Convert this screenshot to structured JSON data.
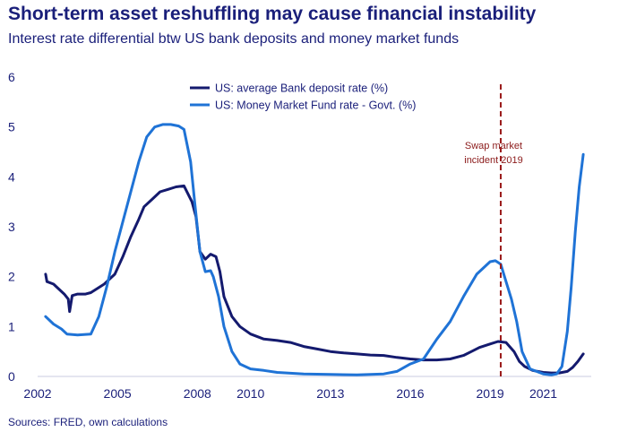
{
  "title": "Short-term asset reshuffling may cause financial instability",
  "subtitle": "Interest rate differential btw US bank deposits and money market funds",
  "source": "Sources: FRED, own calculations",
  "colors": {
    "deposit": "#141a6e",
    "mmf": "#1f73d6",
    "annotation": "#9b1b1b",
    "text": "#1a1f7a"
  },
  "chart_data": {
    "type": "line",
    "xlabel": "",
    "ylabel": "",
    "ylim": [
      0,
      6
    ],
    "xlim": [
      2002,
      2022.8
    ],
    "y_ticks": [
      "0",
      "1",
      "2",
      "3",
      "4",
      "5",
      "6"
    ],
    "x_ticks": [
      {
        "label": "2002",
        "value": 2002
      },
      {
        "label": "2005",
        "value": 2005
      },
      {
        "label": "2008",
        "value": 2008
      },
      {
        "label": "2010",
        "value": 2010
      },
      {
        "label": "2013",
        "value": 2013
      },
      {
        "label": "2016",
        "value": 2016
      },
      {
        "label": "2019",
        "value": 2019
      },
      {
        "label": "2021",
        "value": 2021
      }
    ],
    "grid": false,
    "legend": "top-center",
    "annotation": {
      "x": 2019.4,
      "lines": [
        "Swap market",
        "incident 2019"
      ]
    },
    "series": [
      {
        "name": "US: average Bank deposit rate (%)",
        "x": [
          2002.3,
          2002.35,
          2002.6,
          2002.8,
          2003.0,
          2003.15,
          2003.2,
          2003.3,
          2003.5,
          2003.8,
          2004.0,
          2004.5,
          2004.9,
          2005.2,
          2005.5,
          2005.8,
          2006.0,
          2006.3,
          2006.6,
          2006.9,
          2007.2,
          2007.5,
          2007.8,
          2007.95,
          2008.1,
          2008.3,
          2008.5,
          2008.7,
          2008.85,
          2009.0,
          2009.3,
          2009.6,
          2010.0,
          2010.5,
          2011.0,
          2011.5,
          2012.0,
          2012.5,
          2013.0,
          2013.5,
          2014.0,
          2014.5,
          2015.0,
          2015.5,
          2016.0,
          2016.5,
          2017.0,
          2017.5,
          2018.0,
          2018.3,
          2018.6,
          2019.0,
          2019.3,
          2019.6,
          2019.9,
          2020.1,
          2020.3,
          2020.6,
          2021.0,
          2021.3,
          2021.6,
          2021.9,
          2022.1,
          2022.3,
          2022.5
        ],
        "values": [
          2.05,
          1.9,
          1.85,
          1.75,
          1.65,
          1.55,
          1.3,
          1.62,
          1.65,
          1.65,
          1.68,
          1.85,
          2.05,
          2.4,
          2.8,
          3.15,
          3.4,
          3.55,
          3.7,
          3.75,
          3.8,
          3.82,
          3.5,
          3.2,
          2.5,
          2.35,
          2.45,
          2.4,
          2.1,
          1.6,
          1.2,
          1.0,
          0.85,
          0.75,
          0.72,
          0.68,
          0.6,
          0.55,
          0.5,
          0.47,
          0.45,
          0.43,
          0.42,
          0.38,
          0.35,
          0.33,
          0.33,
          0.35,
          0.42,
          0.5,
          0.58,
          0.65,
          0.7,
          0.68,
          0.5,
          0.3,
          0.2,
          0.12,
          0.08,
          0.07,
          0.07,
          0.1,
          0.18,
          0.3,
          0.45
        ]
      },
      {
        "name": "US: Money Market Fund rate - Govt. (%)",
        "x": [
          2002.3,
          2002.6,
          2002.9,
          2003.1,
          2003.5,
          2004.0,
          2004.3,
          2004.6,
          2004.9,
          2005.2,
          2005.5,
          2005.8,
          2006.1,
          2006.4,
          2006.7,
          2007.0,
          2007.3,
          2007.5,
          2007.75,
          2007.9,
          2008.1,
          2008.3,
          2008.5,
          2008.6,
          2008.8,
          2009.0,
          2009.3,
          2009.6,
          2010.0,
          2010.5,
          2011.0,
          2012.0,
          2013.0,
          2014.0,
          2015.0,
          2015.5,
          2016.0,
          2016.5,
          2017.0,
          2017.5,
          2018.0,
          2018.5,
          2019.0,
          2019.2,
          2019.4,
          2019.6,
          2019.8,
          2020.0,
          2020.2,
          2020.5,
          2021.0,
          2021.3,
          2021.5,
          2021.7,
          2021.9,
          2022.05,
          2022.2,
          2022.35,
          2022.5
        ],
        "values": [
          1.2,
          1.05,
          0.95,
          0.85,
          0.83,
          0.85,
          1.2,
          1.8,
          2.5,
          3.1,
          3.7,
          4.3,
          4.8,
          5.0,
          5.05,
          5.05,
          5.02,
          4.95,
          4.3,
          3.5,
          2.5,
          2.1,
          2.12,
          2.0,
          1.6,
          1.0,
          0.5,
          0.25,
          0.15,
          0.12,
          0.08,
          0.05,
          0.04,
          0.03,
          0.05,
          0.1,
          0.25,
          0.35,
          0.75,
          1.1,
          1.6,
          2.05,
          2.3,
          2.32,
          2.25,
          1.9,
          1.55,
          1.1,
          0.5,
          0.15,
          0.05,
          0.03,
          0.05,
          0.2,
          0.9,
          1.8,
          2.9,
          3.8,
          4.45
        ]
      }
    ]
  }
}
